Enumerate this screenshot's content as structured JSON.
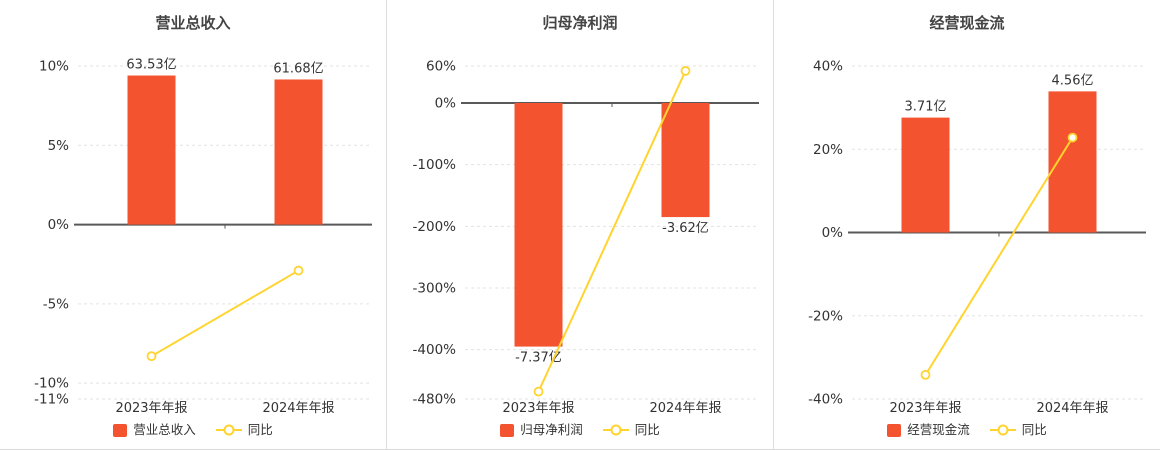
{
  "colors": {
    "bar": "#f4532f",
    "line": "#ffd42e",
    "axis": "#595959",
    "grid": "#e3e3e3",
    "axis_text": "#333333",
    "title_text": "#444444"
  },
  "chart_data": [
    {
      "type": "bar",
      "title": "营业总收入",
      "categories": [
        "2023年年报",
        "2024年年报"
      ],
      "bar_series": {
        "name": "营业总收入",
        "value_labels": [
          "63.53亿",
          "61.68亿"
        ],
        "plot_values_pct": [
          9.4,
          9.15
        ]
      },
      "line_series": {
        "name": "同比",
        "values_pct": [
          -8.3,
          -2.9
        ]
      },
      "ylim": [
        -11,
        10
      ],
      "yticks": [
        10,
        5,
        0,
        -5,
        -10,
        -11
      ],
      "ytick_labels": [
        "10%",
        "5%",
        "0%",
        "-5%",
        "-10%",
        "-11%"
      ],
      "grid": true,
      "legend_position": "bottom"
    },
    {
      "type": "bar",
      "title": "归母净利润",
      "categories": [
        "2023年年报",
        "2024年年报"
      ],
      "bar_series": {
        "name": "归母净利润",
        "value_labels": [
          "-7.37亿",
          "-3.62亿"
        ],
        "plot_values_pct": [
          -395,
          -185
        ]
      },
      "line_series": {
        "name": "同比",
        "values_pct": [
          -468,
          52
        ]
      },
      "ylim": [
        -480,
        60
      ],
      "yticks": [
        60,
        0,
        -100,
        -200,
        -300,
        -400,
        -480
      ],
      "ytick_labels": [
        "60%",
        "0%",
        "-100%",
        "-200%",
        "-300%",
        "-400%",
        "-480%"
      ],
      "grid": true,
      "legend_position": "bottom"
    },
    {
      "type": "bar",
      "title": "经营现金流",
      "categories": [
        "2023年年报",
        "2024年年报"
      ],
      "bar_series": {
        "name": "经营现金流",
        "value_labels": [
          "3.71亿",
          "4.56亿"
        ],
        "plot_values_pct": [
          27.6,
          33.9
        ]
      },
      "line_series": {
        "name": "同比",
        "values_pct": [
          -34.2,
          22.8
        ]
      },
      "ylim": [
        -40,
        40
      ],
      "yticks": [
        40,
        20,
        0,
        -20,
        -40
      ],
      "ytick_labels": [
        "40%",
        "20%",
        "0%",
        "-20%",
        "-40%"
      ],
      "grid": true,
      "legend_position": "bottom"
    }
  ]
}
